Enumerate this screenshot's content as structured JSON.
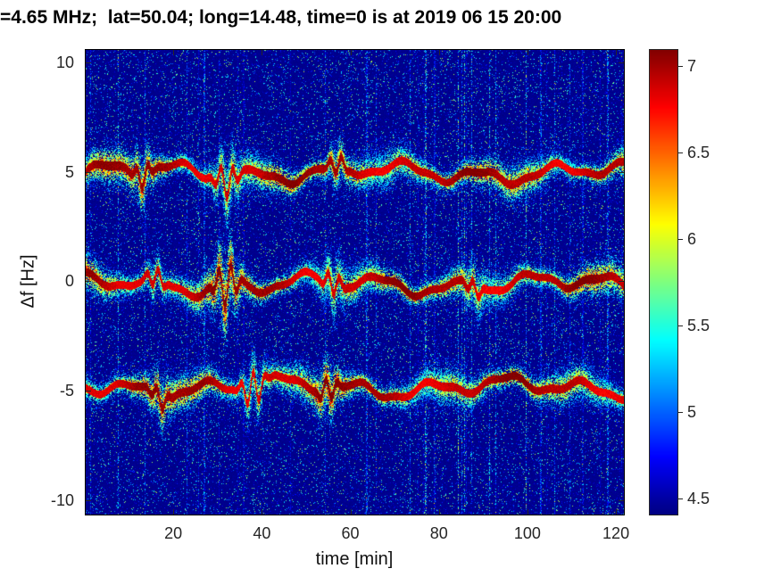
{
  "chart_data": {
    "type": "heatmap",
    "title": "=4.65 MHz;  lat=50.04; long=14.48, time=0 is at 2019 06 15 20:00",
    "xlabel": "time [min]",
    "ylabel": "Δf [Hz]",
    "xlim": [
      0,
      122
    ],
    "ylim": [
      -10.7,
      10.6
    ],
    "xticks": [
      20,
      40,
      60,
      80,
      100,
      120
    ],
    "yticks": [
      10,
      5,
      0,
      -5,
      -10
    ],
    "colormap": "jet",
    "clim": [
      4.4,
      7.1
    ],
    "colorbar_ticks": [
      7,
      6.5,
      6,
      5.5,
      5,
      4.5
    ],
    "noise_floor": 4.42,
    "bands": [
      {
        "center_hz": 4.95,
        "mean_peak": 7.0,
        "halfwidth_hz": 0.5,
        "bursts": [
          {
            "t": 13,
            "amp": 0.6,
            "sigma": 2
          },
          {
            "t": 32,
            "amp": 0.8,
            "sigma": 2.5
          },
          {
            "t": 57,
            "amp": 0.5,
            "sigma": 2
          }
        ]
      },
      {
        "center_hz": -0.15,
        "mean_peak": 7.0,
        "halfwidth_hz": 0.5,
        "bursts": [
          {
            "t": 16,
            "amp": 0.5,
            "sigma": 2
          },
          {
            "t": 32,
            "amp": 1.1,
            "sigma": 2.5
          },
          {
            "t": 56,
            "amp": 0.6,
            "sigma": 2
          },
          {
            "t": 88,
            "amp": 0.4,
            "sigma": 2
          }
        ]
      },
      {
        "center_hz": -4.85,
        "mean_peak": 7.0,
        "halfwidth_hz": 0.5,
        "bursts": [
          {
            "t": 17,
            "amp": 0.5,
            "sigma": 2
          },
          {
            "t": 38,
            "amp": 0.9,
            "sigma": 2.5
          },
          {
            "t": 55,
            "amp": 0.6,
            "sigma": 2
          }
        ]
      }
    ],
    "interference_streaks": {
      "density_left": 0.03,
      "density_right": 0.11,
      "max_boost": 1.7
    },
    "description": "HF Doppler spectrogram: three spread-Doppler traces near +5, 0 and -5 Hz over a noisy dark-blue background with vertical interference streaks; jet colormap, color scale 4.4 to 7.1 (log power)."
  }
}
